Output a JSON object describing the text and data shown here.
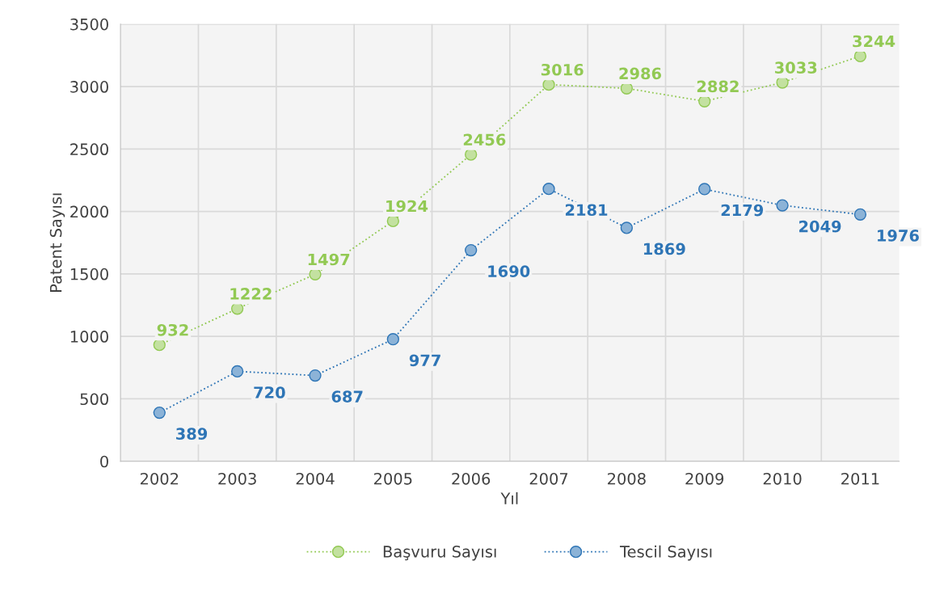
{
  "chart_data": {
    "type": "line",
    "xlabel": "Yıl",
    "ylabel": "Patent Sayısı",
    "categories": [
      "2002",
      "2003",
      "2004",
      "2005",
      "2006",
      "2007",
      "2008",
      "2009",
      "2010",
      "2011"
    ],
    "series": [
      {
        "name": "Başvuru Sayısı",
        "color": "#92c953",
        "values": [
          932,
          1222,
          1497,
          1924,
          2456,
          3016,
          2986,
          2882,
          3033,
          3244
        ]
      },
      {
        "name": "Tescil Sayısı",
        "color": "#2e75b6",
        "values": [
          389,
          720,
          687,
          977,
          1690,
          2181,
          1869,
          2179,
          2049,
          1976
        ]
      }
    ],
    "ylim": [
      0,
      3500
    ],
    "yticks": [
      0,
      500,
      1000,
      1500,
      2000,
      2500,
      3000,
      3500
    ],
    "grid": true,
    "legend": "bottom",
    "marker": "circle",
    "line_style": "dotted",
    "data_labels": true
  }
}
